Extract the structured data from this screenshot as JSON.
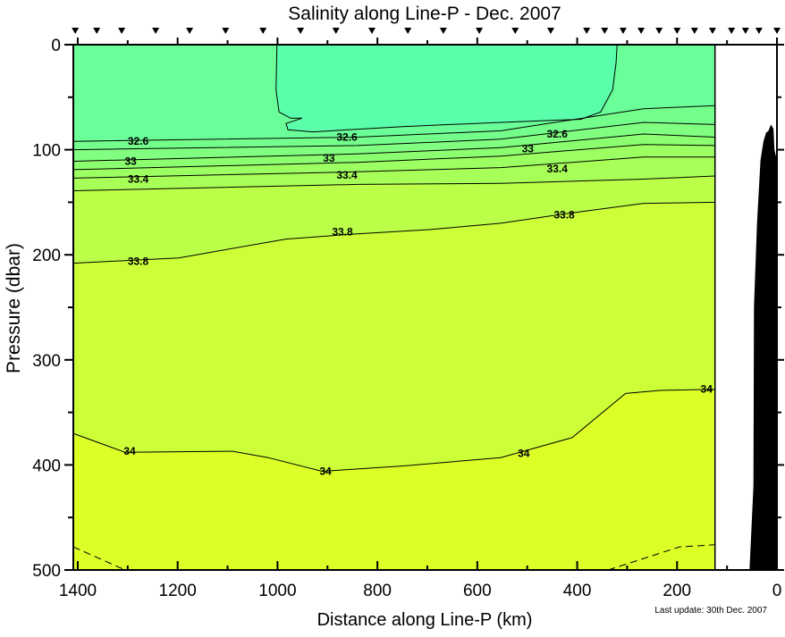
{
  "chart_data": {
    "type": "contour",
    "title": "Salinity along Line-P - Dec. 2007",
    "xlabel": "Distance along Line-P (km)",
    "ylabel": "Pressure (dbar)",
    "footnote": "Last update: 30th Dec. 2007",
    "xlim": [
      1409,
      0
    ],
    "ylim": [
      0,
      500
    ],
    "x_reversed": true,
    "y_inverted": true,
    "xticks": [
      1400,
      1200,
      1000,
      800,
      600,
      400,
      200,
      0
    ],
    "xticks_minor_step": 100,
    "yticks": [
      0,
      100,
      200,
      300,
      400,
      500
    ],
    "yticks_minor_step": 50,
    "data_extent_km": [
      124,
      1409
    ],
    "station_km": [
      1405,
      1362,
      1312,
      1244,
      1176,
      1104,
      1029,
      954,
      883,
      811,
      739,
      668,
      596,
      524,
      453,
      381,
      345,
      308,
      272,
      236,
      200,
      165,
      129,
      91,
      63,
      36,
      0
    ],
    "closed_region": {
      "color": "#5affab",
      "points": [
        [
          1001,
          0
        ],
        [
          1003,
          43
        ],
        [
          997,
          64
        ],
        [
          974,
          70
        ],
        [
          951,
          70
        ],
        [
          983,
          75
        ],
        [
          979,
          81
        ],
        [
          929,
          83
        ],
        [
          750,
          78
        ],
        [
          553,
          74
        ],
        [
          392,
          71
        ],
        [
          353,
          64
        ],
        [
          329,
          43
        ],
        [
          322,
          17
        ],
        [
          320,
          0
        ]
      ]
    },
    "contours": [
      {
        "level": 32.6,
        "fill_above": "#6aff98",
        "points": [
          [
            1409,
            92
          ],
          [
            840,
            88
          ],
          [
            553,
            82
          ],
          [
            267,
            61
          ],
          [
            124,
            58
          ]
        ]
      },
      {
        "level": 32.8,
        "fill_above": "#74ff8c",
        "points": [
          [
            1409,
            100
          ],
          [
            840,
            96
          ],
          [
            553,
            90
          ],
          [
            267,
            74
          ],
          [
            124,
            76
          ]
        ]
      },
      {
        "level": 33.0,
        "fill_above": "#80ff80",
        "points": [
          [
            1409,
            111
          ],
          [
            840,
            104
          ],
          [
            553,
            98
          ],
          [
            267,
            85
          ],
          [
            124,
            88
          ]
        ]
      },
      {
        "level": 33.2,
        "fill_above": "#8cff70",
        "points": [
          [
            1409,
            119
          ],
          [
            840,
            112
          ],
          [
            553,
            106
          ],
          [
            267,
            95
          ],
          [
            124,
            96
          ]
        ]
      },
      {
        "level": 33.4,
        "fill_above": "#9cff62",
        "points": [
          [
            1409,
            127
          ],
          [
            840,
            121
          ],
          [
            553,
            117
          ],
          [
            267,
            107
          ],
          [
            124,
            107
          ]
        ]
      },
      {
        "level": 33.6,
        "fill_above": "#a8ff58",
        "points": [
          [
            1409,
            139
          ],
          [
            840,
            133
          ],
          [
            553,
            132
          ],
          [
            267,
            128
          ],
          [
            124,
            125
          ]
        ]
      },
      {
        "level": 33.8,
        "fill_above": "#bcff48",
        "points": [
          [
            1409,
            208
          ],
          [
            1198,
            203
          ],
          [
            983,
            185
          ],
          [
            840,
            180
          ],
          [
            696,
            176
          ],
          [
            553,
            170
          ],
          [
            410,
            160
          ],
          [
            267,
            151
          ],
          [
            124,
            150
          ]
        ]
      },
      {
        "level": 34.0,
        "fill_above": "#ccff38",
        "points": [
          [
            1409,
            370
          ],
          [
            1305,
            388
          ],
          [
            1090,
            387
          ],
          [
            1019,
            393
          ],
          [
            911,
            406
          ],
          [
            750,
            401
          ],
          [
            553,
            393
          ],
          [
            410,
            374
          ],
          [
            303,
            332
          ],
          [
            231,
            329
          ],
          [
            124,
            328
          ]
        ]
      }
    ],
    "dashed_contours": [
      {
        "points": [
          [
            1409,
            478
          ],
          [
            1305,
            500
          ]
        ]
      },
      {
        "points": [
          [
            338,
            500
          ],
          [
            195,
            478
          ],
          [
            124,
            476
          ]
        ]
      }
    ],
    "deep_fill": "#dcff28",
    "labels": [
      {
        "text": "32.6",
        "km": 1279,
        "dbar": 92
      },
      {
        "text": "33",
        "km": 1294,
        "dbar": 111
      },
      {
        "text": "33.4",
        "km": 1279,
        "dbar": 128
      },
      {
        "text": "33.8",
        "km": 1279,
        "dbar": 206
      },
      {
        "text": "32.6",
        "km": 861,
        "dbar": 88
      },
      {
        "text": "33",
        "km": 897,
        "dbar": 108
      },
      {
        "text": "33.4",
        "km": 861,
        "dbar": 124
      },
      {
        "text": "33.8",
        "km": 870,
        "dbar": 178
      },
      {
        "text": "32.6",
        "km": 440,
        "dbar": 85
      },
      {
        "text": "33",
        "km": 499,
        "dbar": 99
      },
      {
        "text": "33.4",
        "km": 440,
        "dbar": 118
      },
      {
        "text": "33.8",
        "km": 426,
        "dbar": 162
      },
      {
        "text": "34",
        "km": 1296,
        "dbar": 387
      },
      {
        "text": "34",
        "km": 904,
        "dbar": 406
      },
      {
        "text": "34",
        "km": 507,
        "dbar": 389
      },
      {
        "text": "34",
        "km": 141,
        "dbar": 328
      }
    ],
    "bathymetry": [
      [
        55,
        500
      ],
      [
        47,
        420
      ],
      [
        46,
        250
      ],
      [
        40,
        170
      ],
      [
        33,
        110
      ],
      [
        27,
        92
      ],
      [
        22,
        84
      ],
      [
        17,
        82
      ],
      [
        12,
        76
      ],
      [
        7,
        80
      ],
      [
        5,
        100
      ],
      [
        0,
        110
      ],
      [
        0,
        500
      ]
    ]
  }
}
